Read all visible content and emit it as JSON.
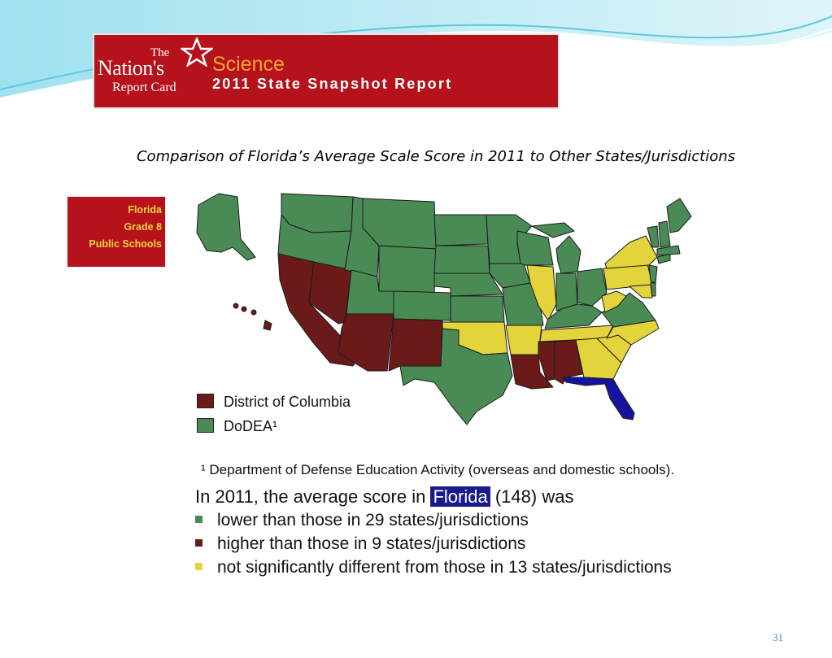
{
  "colors": {
    "banner_red": "#b6121b",
    "science_orange": "#f6a531",
    "lower": "#4a8a54",
    "higher": "#6b1a1a",
    "not_different": "#e3d43b",
    "florida": "#1414a0",
    "wave_blue": "#5ec8e0"
  },
  "banner": {
    "logo_the": "The",
    "logo_nations": "Nation's",
    "logo_report": "Report Card",
    "science": "Science",
    "subtitle": "2011 State Snapshot Report"
  },
  "title": "Comparison of Florida’s Average Scale Score in 2011 to Other States/Jurisdictions",
  "side_label": {
    "line1": "Florida",
    "line2": "Grade 8",
    "line3": "Public Schools"
  },
  "legend": {
    "dc": "District of Columbia",
    "dodea": "DoDEA¹"
  },
  "footnote": "¹ Department of Defense Education Activity (overseas and domestic schools).",
  "summary": {
    "prefix": "In 2011, the average score in",
    "state": "Florida",
    "suffix": "(148) was",
    "bullets": [
      {
        "text": "lower than those in 29 states/jurisdictions",
        "color": "#4a8a54"
      },
      {
        "text": "higher than those in 9 states/jurisdictions",
        "color": "#6b1a1a"
      },
      {
        "text": "not significantly different from those in 13 states/jurisdictions",
        "color": "#e3d43b"
      }
    ]
  },
  "page_number": "31"
}
